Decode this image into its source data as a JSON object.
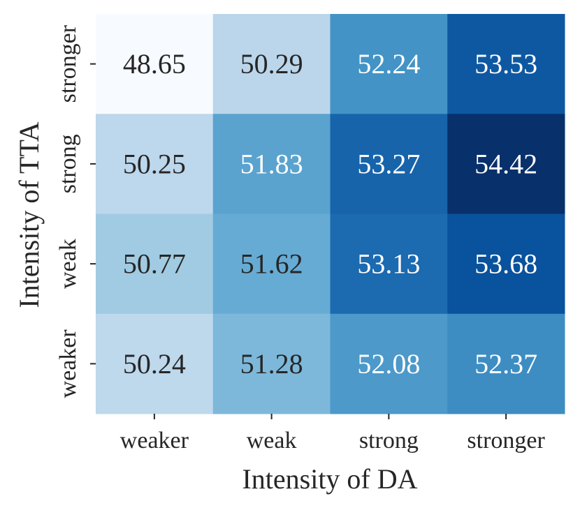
{
  "chart_data": {
    "type": "heatmap",
    "xlabel": "Intensity of DA",
    "ylabel": "Intensity of TTA",
    "x_categories": [
      "weaker",
      "weak",
      "strong",
      "stronger"
    ],
    "y_categories": [
      "stronger",
      "strong",
      "weak",
      "weaker"
    ],
    "values": [
      [
        48.65,
        50.29,
        52.24,
        53.53
      ],
      [
        50.25,
        51.83,
        53.27,
        54.42
      ],
      [
        50.77,
        51.62,
        53.13,
        53.68
      ],
      [
        50.24,
        51.28,
        52.08,
        52.37
      ]
    ],
    "colormap": "Blues",
    "colorbar": false,
    "annotations": true,
    "light_text_color": "#ffffff",
    "dark_text_color": "#262626"
  }
}
